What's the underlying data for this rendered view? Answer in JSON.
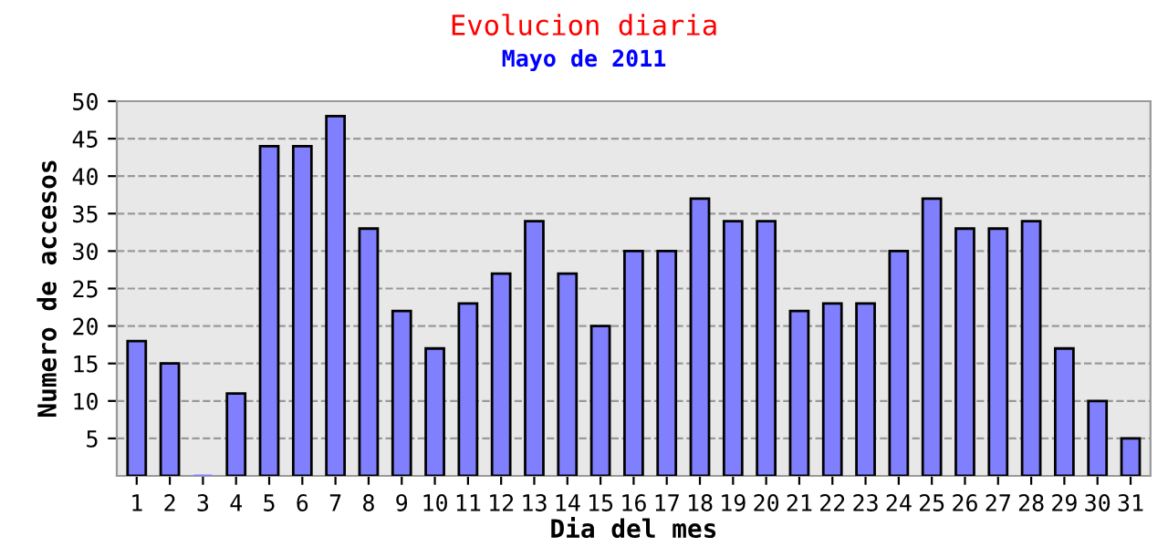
{
  "chart_data": {
    "type": "bar",
    "title": "Evolucion diaria",
    "subtitle": "Mayo de 2011",
    "xlabel": "Dia del mes",
    "ylabel": "Numero de accesos",
    "categories": [
      "1",
      "2",
      "3",
      "4",
      "5",
      "6",
      "7",
      "8",
      "9",
      "10",
      "11",
      "12",
      "13",
      "14",
      "15",
      "16",
      "17",
      "18",
      "19",
      "20",
      "21",
      "22",
      "23",
      "24",
      "25",
      "26",
      "27",
      "28",
      "29",
      "30",
      "31"
    ],
    "values": [
      18,
      15,
      0,
      11,
      44,
      44,
      48,
      33,
      22,
      17,
      23,
      27,
      34,
      27,
      20,
      30,
      30,
      37,
      34,
      34,
      22,
      23,
      23,
      30,
      37,
      33,
      33,
      34,
      17,
      10,
      5
    ],
    "color": "#8080ff",
    "ylim": [
      0,
      50
    ],
    "yticks": [
      5,
      10,
      15,
      20,
      25,
      30,
      35,
      40,
      45,
      50
    ],
    "grid": "y",
    "line_style": "dashed",
    "legend": false
  }
}
